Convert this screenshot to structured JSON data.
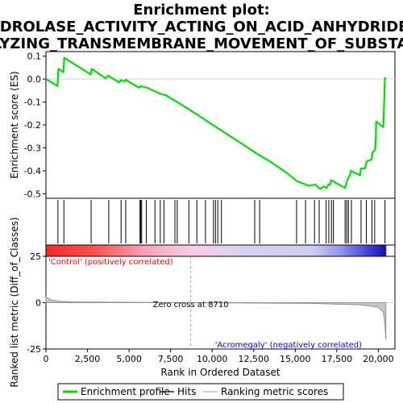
{
  "chart_data": {
    "type": "line",
    "title_lines": [
      "Enrichment plot:",
      "HYDROLASE_ACTIVITY_ACTING_ON_ACID_ANHYDRIDES_",
      "CATALYZING_TRANSMEMBRANE_MOVEMENT_OF_SUBSTANCES"
    ],
    "xlabel": "Rank in Ordered Dataset",
    "es_panel": {
      "ylabel": "Enrichment score (ES)",
      "ylim": [
        -0.52,
        0.12
      ],
      "yticks": [
        0.1,
        0.0,
        -0.1,
        -0.2,
        -0.3,
        -0.4,
        -0.5
      ],
      "ytick_labels": [
        "0.1",
        "0.0",
        "-0.1",
        "-0.2",
        "-0.3",
        "-0.4",
        "-0.5"
      ],
      "series_color": "#00e000",
      "points": [
        [
          0,
          0.0
        ],
        [
          700,
          -0.03
        ],
        [
          750,
          0.045
        ],
        [
          1050,
          0.03
        ],
        [
          1100,
          0.093
        ],
        [
          2700,
          0.02
        ],
        [
          2750,
          0.045
        ],
        [
          3600,
          0.003
        ],
        [
          3750,
          0.015
        ],
        [
          4400,
          -0.015
        ],
        [
          4500,
          -0.005
        ],
        [
          4750,
          -0.01
        ],
        [
          4800,
          -0.003
        ],
        [
          5600,
          -0.038
        ],
        [
          5700,
          -0.03
        ],
        [
          5750,
          -0.032
        ],
        [
          6100,
          -0.038
        ],
        [
          6900,
          -0.065
        ],
        [
          7200,
          -0.07
        ],
        [
          8000,
          -0.105
        ],
        [
          9000,
          -0.15
        ],
        [
          10000,
          -0.198
        ],
        [
          11000,
          -0.245
        ],
        [
          12000,
          -0.292
        ],
        [
          12800,
          -0.33
        ],
        [
          13500,
          -0.36
        ],
        [
          14500,
          -0.41
        ],
        [
          15100,
          -0.445
        ],
        [
          15800,
          -0.465
        ],
        [
          16200,
          -0.46
        ],
        [
          16500,
          -0.48
        ],
        [
          16700,
          -0.468
        ],
        [
          16900,
          -0.475
        ],
        [
          17000,
          -0.46
        ],
        [
          17100,
          -0.46
        ],
        [
          17150,
          -0.44
        ],
        [
          17500,
          -0.455
        ],
        [
          18000,
          -0.475
        ],
        [
          18100,
          -0.45
        ],
        [
          18200,
          -0.43
        ],
        [
          18300,
          -0.42
        ],
        [
          18350,
          -0.4
        ],
        [
          18900,
          -0.42
        ],
        [
          18950,
          -0.39
        ],
        [
          19200,
          -0.39
        ],
        [
          19300,
          -0.36
        ],
        [
          19600,
          -0.35
        ],
        [
          19650,
          -0.32
        ],
        [
          19800,
          -0.31
        ],
        [
          19850,
          -0.26
        ],
        [
          19870,
          -0.185
        ],
        [
          20300,
          -0.21
        ],
        [
          20400,
          0.005
        ],
        [
          20450,
          0.0
        ]
      ]
    },
    "hits": [
      720,
      1080,
      2720,
      3780,
      4520,
      4800,
      5660,
      5700,
      5760,
      6040,
      6560,
      6880,
      7100,
      7760,
      7900,
      8600,
      9080,
      9600,
      10080,
      10200,
      10340,
      10560,
      12560,
      12860,
      15080,
      15620,
      16160,
      16440,
      16860,
      17020,
      17180,
      17300,
      18000,
      18100,
      18200,
      18380,
      18960,
      19280,
      19620,
      19780,
      20400
    ],
    "rank_panel": {
      "ylabel": "Ranked list metric (Diff_of_Classes)",
      "ylim": [
        -25,
        25
      ],
      "yticks": [
        25,
        0,
        -25
      ],
      "ytick_labels": [
        "25",
        "0",
        "-25"
      ],
      "points": [
        [
          0,
          3
        ],
        [
          300,
          1.5
        ],
        [
          800,
          0.8
        ],
        [
          1600,
          0.4
        ],
        [
          8710,
          0
        ],
        [
          16000,
          -0.4
        ],
        [
          19000,
          -1.2
        ],
        [
          20000,
          -2.5
        ],
        [
          20300,
          -5
        ],
        [
          20400,
          -12
        ],
        [
          20450,
          -20
        ]
      ],
      "zero_cross_label": "Zero cross at 8710",
      "zero_cross": 8710,
      "positive_label": "'Control' (positively correlated)",
      "negative_label": "'Acromegaly' (negatively correlated)",
      "positive_color": "#ff0000",
      "negative_color": "#0000ff"
    },
    "xlim": [
      0,
      21000
    ],
    "xticks": [
      0,
      2500,
      5000,
      7500,
      10000,
      12500,
      15000,
      17500,
      20000
    ],
    "xtick_labels": [
      "0",
      "2,500",
      "5,000",
      "7,500",
      "10,000",
      "12,500",
      "15,000",
      "17,500",
      "20,000"
    ],
    "legend": [
      {
        "label": "Enrichment profile",
        "color": "#00e000",
        "kind": "thick"
      },
      {
        "label": "Hits",
        "color": "#000000",
        "kind": "thin"
      },
      {
        "label": "Ranking metric scores",
        "color": "#b0b0b0",
        "kind": "thin"
      }
    ]
  }
}
